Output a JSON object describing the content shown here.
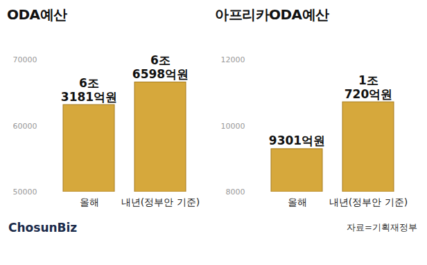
{
  "chart_data": [
    {
      "type": "bar",
      "title": "ODA예산",
      "categories": [
        "올해",
        "내년(정부안 기준)"
      ],
      "values": [
        63181,
        66598
      ],
      "value_labels": [
        "6조 3181억원",
        "6조 6598억원"
      ],
      "data_labels": true,
      "color": "#d6a83c",
      "ylim": [
        50000,
        70000
      ],
      "yticks": [
        50000,
        60000,
        70000
      ],
      "grid": false
    },
    {
      "type": "bar",
      "title": "아프리카ODA예산",
      "categories": [
        "올해",
        "내년(정부안 기준)"
      ],
      "values": [
        9301,
        10720
      ],
      "value_labels": [
        "9301억원",
        "1조 720억원"
      ],
      "data_labels": true,
      "color": "#d6a83c",
      "ylim": [
        8000,
        12000
      ],
      "yticks": [
        8000,
        10000,
        12000
      ],
      "grid": false
    }
  ],
  "footer": {
    "brand": "ChosunBiz",
    "source": "자료=기획재정부"
  }
}
